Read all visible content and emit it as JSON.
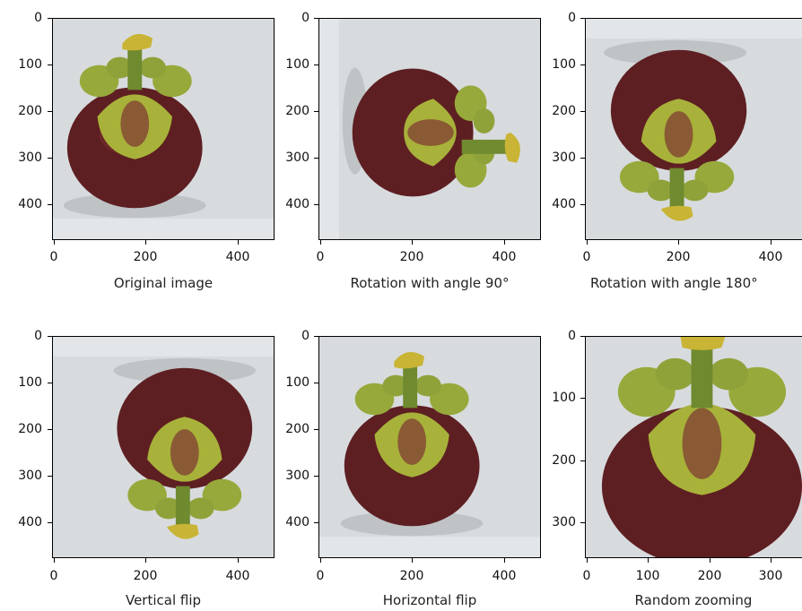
{
  "figure": {
    "panels": [
      {
        "caption": "Original image",
        "yticks": [
          "0",
          "100",
          "200",
          "300",
          "400"
        ],
        "xticks": [
          "0",
          "200",
          "400"
        ],
        "image": "mangosteen-original"
      },
      {
        "caption": "Rotation with angle 90°",
        "yticks": [
          "0",
          "100",
          "200",
          "300",
          "400"
        ],
        "xticks": [
          "0",
          "200",
          "400"
        ],
        "image": "mangosteen-rotated-90"
      },
      {
        "caption": "Rotation with angle 180°",
        "yticks": [
          "0",
          "100",
          "200",
          "300",
          "400"
        ],
        "xticks": [
          "0",
          "200",
          "400"
        ],
        "image": "mangosteen-rotated-180"
      },
      {
        "caption": "Vertical flip",
        "yticks": [
          "0",
          "100",
          "200",
          "300",
          "400"
        ],
        "xticks": [
          "0",
          "200",
          "400"
        ],
        "image": "mangosteen-vertical-flip"
      },
      {
        "caption": "Horizontal flip",
        "yticks": [
          "0",
          "100",
          "200",
          "300",
          "400"
        ],
        "xticks": [
          "0",
          "200",
          "400"
        ],
        "image": "mangosteen-horizontal-flip"
      },
      {
        "caption": "Random zooming",
        "yticks": [
          "0",
          "100",
          "200",
          "300"
        ],
        "xticks": [
          "0",
          "100",
          "200",
          "300"
        ],
        "image": "mangosteen-zoomed"
      }
    ]
  },
  "colors": {
    "background": "#d9dde0",
    "fruit": "#5e1f22",
    "calyx": "#9cab3a",
    "stem": "#6f8a2f",
    "center": "#8a6a3a"
  }
}
